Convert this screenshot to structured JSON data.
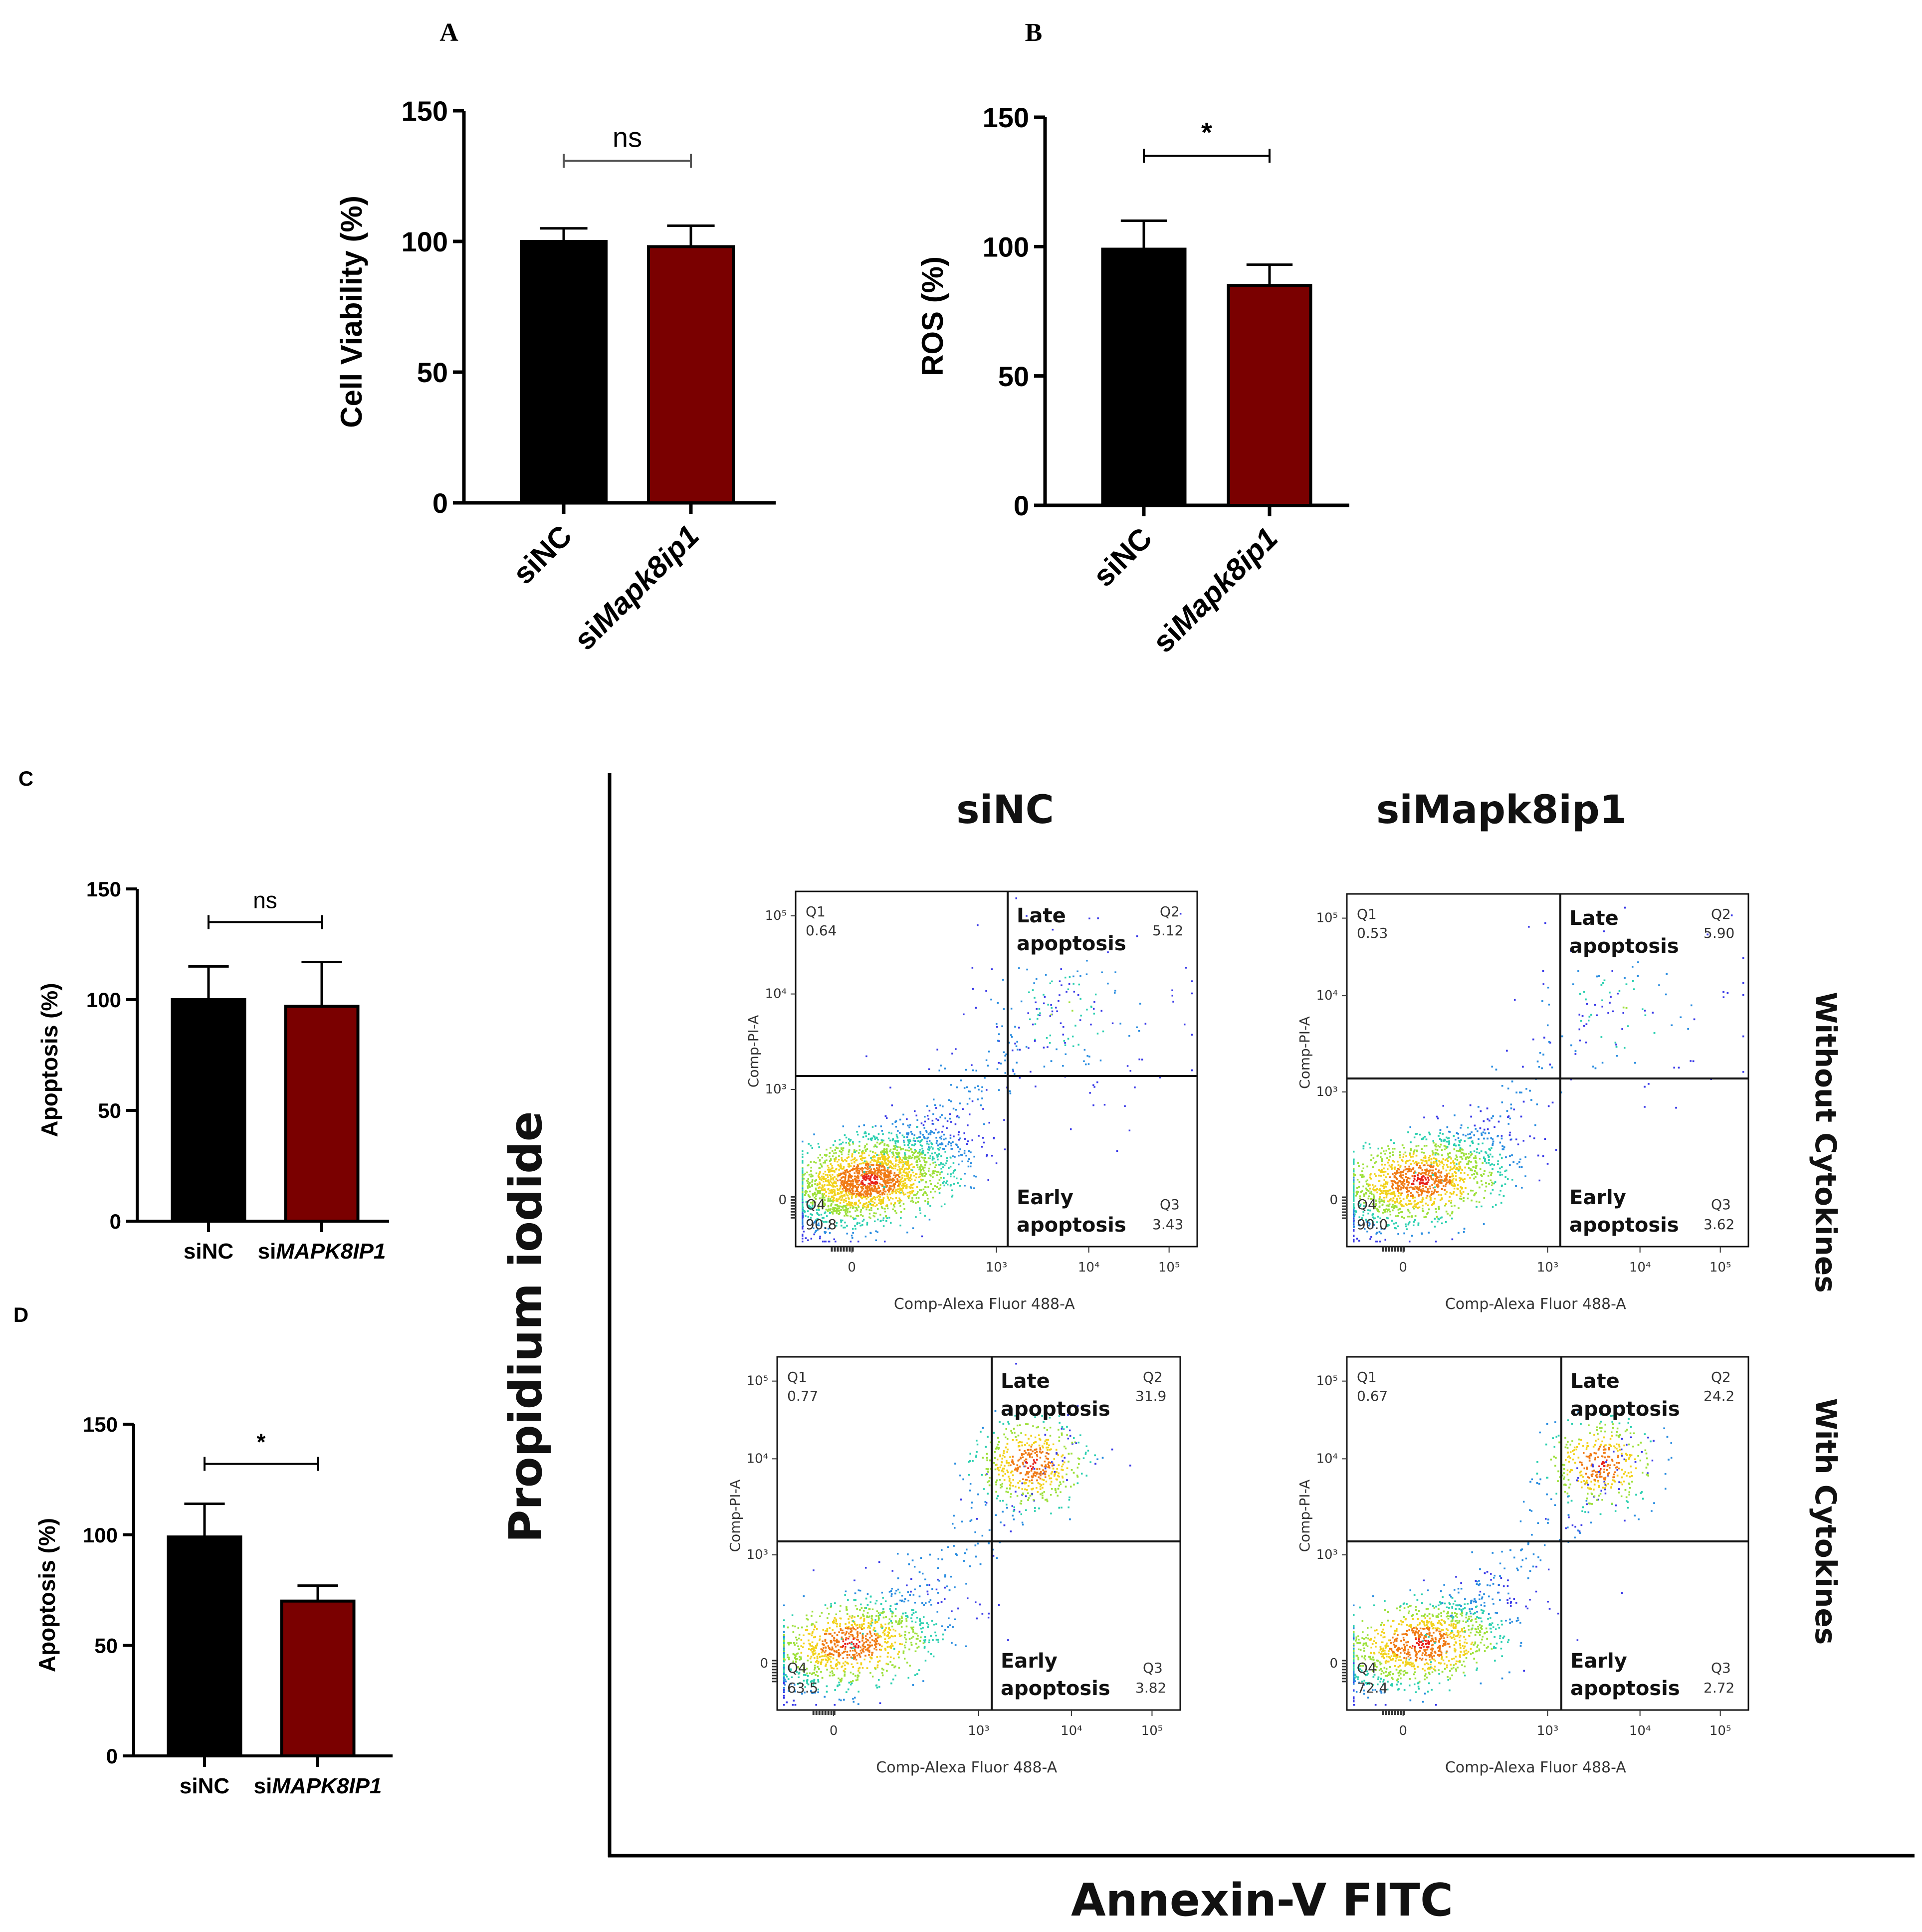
{
  "colors": {
    "siNC": "#000000",
    "knockdown": "#7a0000",
    "flow_ramp": [
      "#3a3ae8",
      "#2a8de0",
      "#2bd0b0",
      "#9de03a",
      "#f2d21a",
      "#f07a14",
      "#e8211a"
    ]
  },
  "chart_data": [
    {
      "panel": "A",
      "type": "bar",
      "categories": [
        "siNC",
        "siMapk8ip1"
      ],
      "category_italic": [
        "",
        "Mapk8ip1"
      ],
      "values": [
        100,
        98
      ],
      "errors": [
        5,
        8
      ],
      "ylabel": "Cell Viability (%)",
      "ylim": [
        0,
        150
      ],
      "yticks": [
        "0",
        "50",
        "100",
        "150"
      ],
      "significance": "ns",
      "tick_labels_rotated": true
    },
    {
      "panel": "B",
      "type": "bar",
      "categories": [
        "siNC",
        "siMapk8ip1"
      ],
      "category_italic": [
        "",
        "Mapk8ip1"
      ],
      "values": [
        99,
        85
      ],
      "errors": [
        11,
        8
      ],
      "ylabel": "ROS (%)",
      "ylim": [
        0,
        150
      ],
      "yticks": [
        "0",
        "50",
        "100",
        "150"
      ],
      "significance": "*",
      "tick_labels_rotated": true
    },
    {
      "panel": "C",
      "type": "bar",
      "categories": [
        "siNC",
        "siMAPK8IP1"
      ],
      "category_italic": [
        "",
        "MAPK8IP1"
      ],
      "values": [
        100,
        97
      ],
      "errors": [
        15,
        20
      ],
      "ylabel": "Apoptosis (%)",
      "ylim": [
        0,
        150
      ],
      "yticks": [
        "0",
        "50",
        "100",
        "150"
      ],
      "significance": "ns",
      "tick_labels_rotated": false
    },
    {
      "panel": "D",
      "type": "bar",
      "categories": [
        "siNC",
        "siMAPK8IP1"
      ],
      "category_italic": [
        "",
        "MAPK8IP1"
      ],
      "values": [
        99,
        70
      ],
      "errors": [
        15,
        7
      ],
      "ylabel": "Apoptosis (%)",
      "ylim": [
        0,
        150
      ],
      "yticks": [
        "0",
        "50",
        "100",
        "150"
      ],
      "significance": "*",
      "tick_labels_rotated": false
    },
    {
      "panel": "flow",
      "type": "scatter",
      "columns": [
        "siNC",
        "siMapk8ip1"
      ],
      "rows": [
        "Without Cytokines",
        "With Cytokines"
      ],
      "xlabel": "Annexin-V FITC",
      "ylabel": "Propidium iodide",
      "plot_xlabel": "Comp-Alexa Fluor 488-A",
      "plot_ylabel": "Comp-PI-A",
      "x_ticks": [
        "0",
        "10³",
        "10⁴",
        "10⁵"
      ],
      "y_ticks": [
        "0",
        "10³",
        "10⁴",
        "10⁵"
      ],
      "late_label": [
        "Late",
        "apoptosis"
      ],
      "early_label": [
        "Early",
        "apoptosis"
      ],
      "plots": [
        {
          "column": "siNC",
          "row": "Without Cytokines",
          "Q1": "0.64",
          "Q2": "5.12",
          "Q3": "3.43",
          "Q4": "90.8"
        },
        {
          "column": "siMapk8ip1",
          "row": "Without Cytokines",
          "Q1": "0.53",
          "Q2": "5.90",
          "Q3": "3.62",
          "Q4": "90.0"
        },
        {
          "column": "siNC",
          "row": "With Cytokines",
          "Q1": "0.77",
          "Q2": "31.9",
          "Q3": "3.82",
          "Q4": "63.5"
        },
        {
          "column": "siMapk8ip1",
          "row": "With Cytokines",
          "Q1": "0.67",
          "Q2": "24.2",
          "Q3": "2.72",
          "Q4": "72.4"
        }
      ]
    }
  ]
}
